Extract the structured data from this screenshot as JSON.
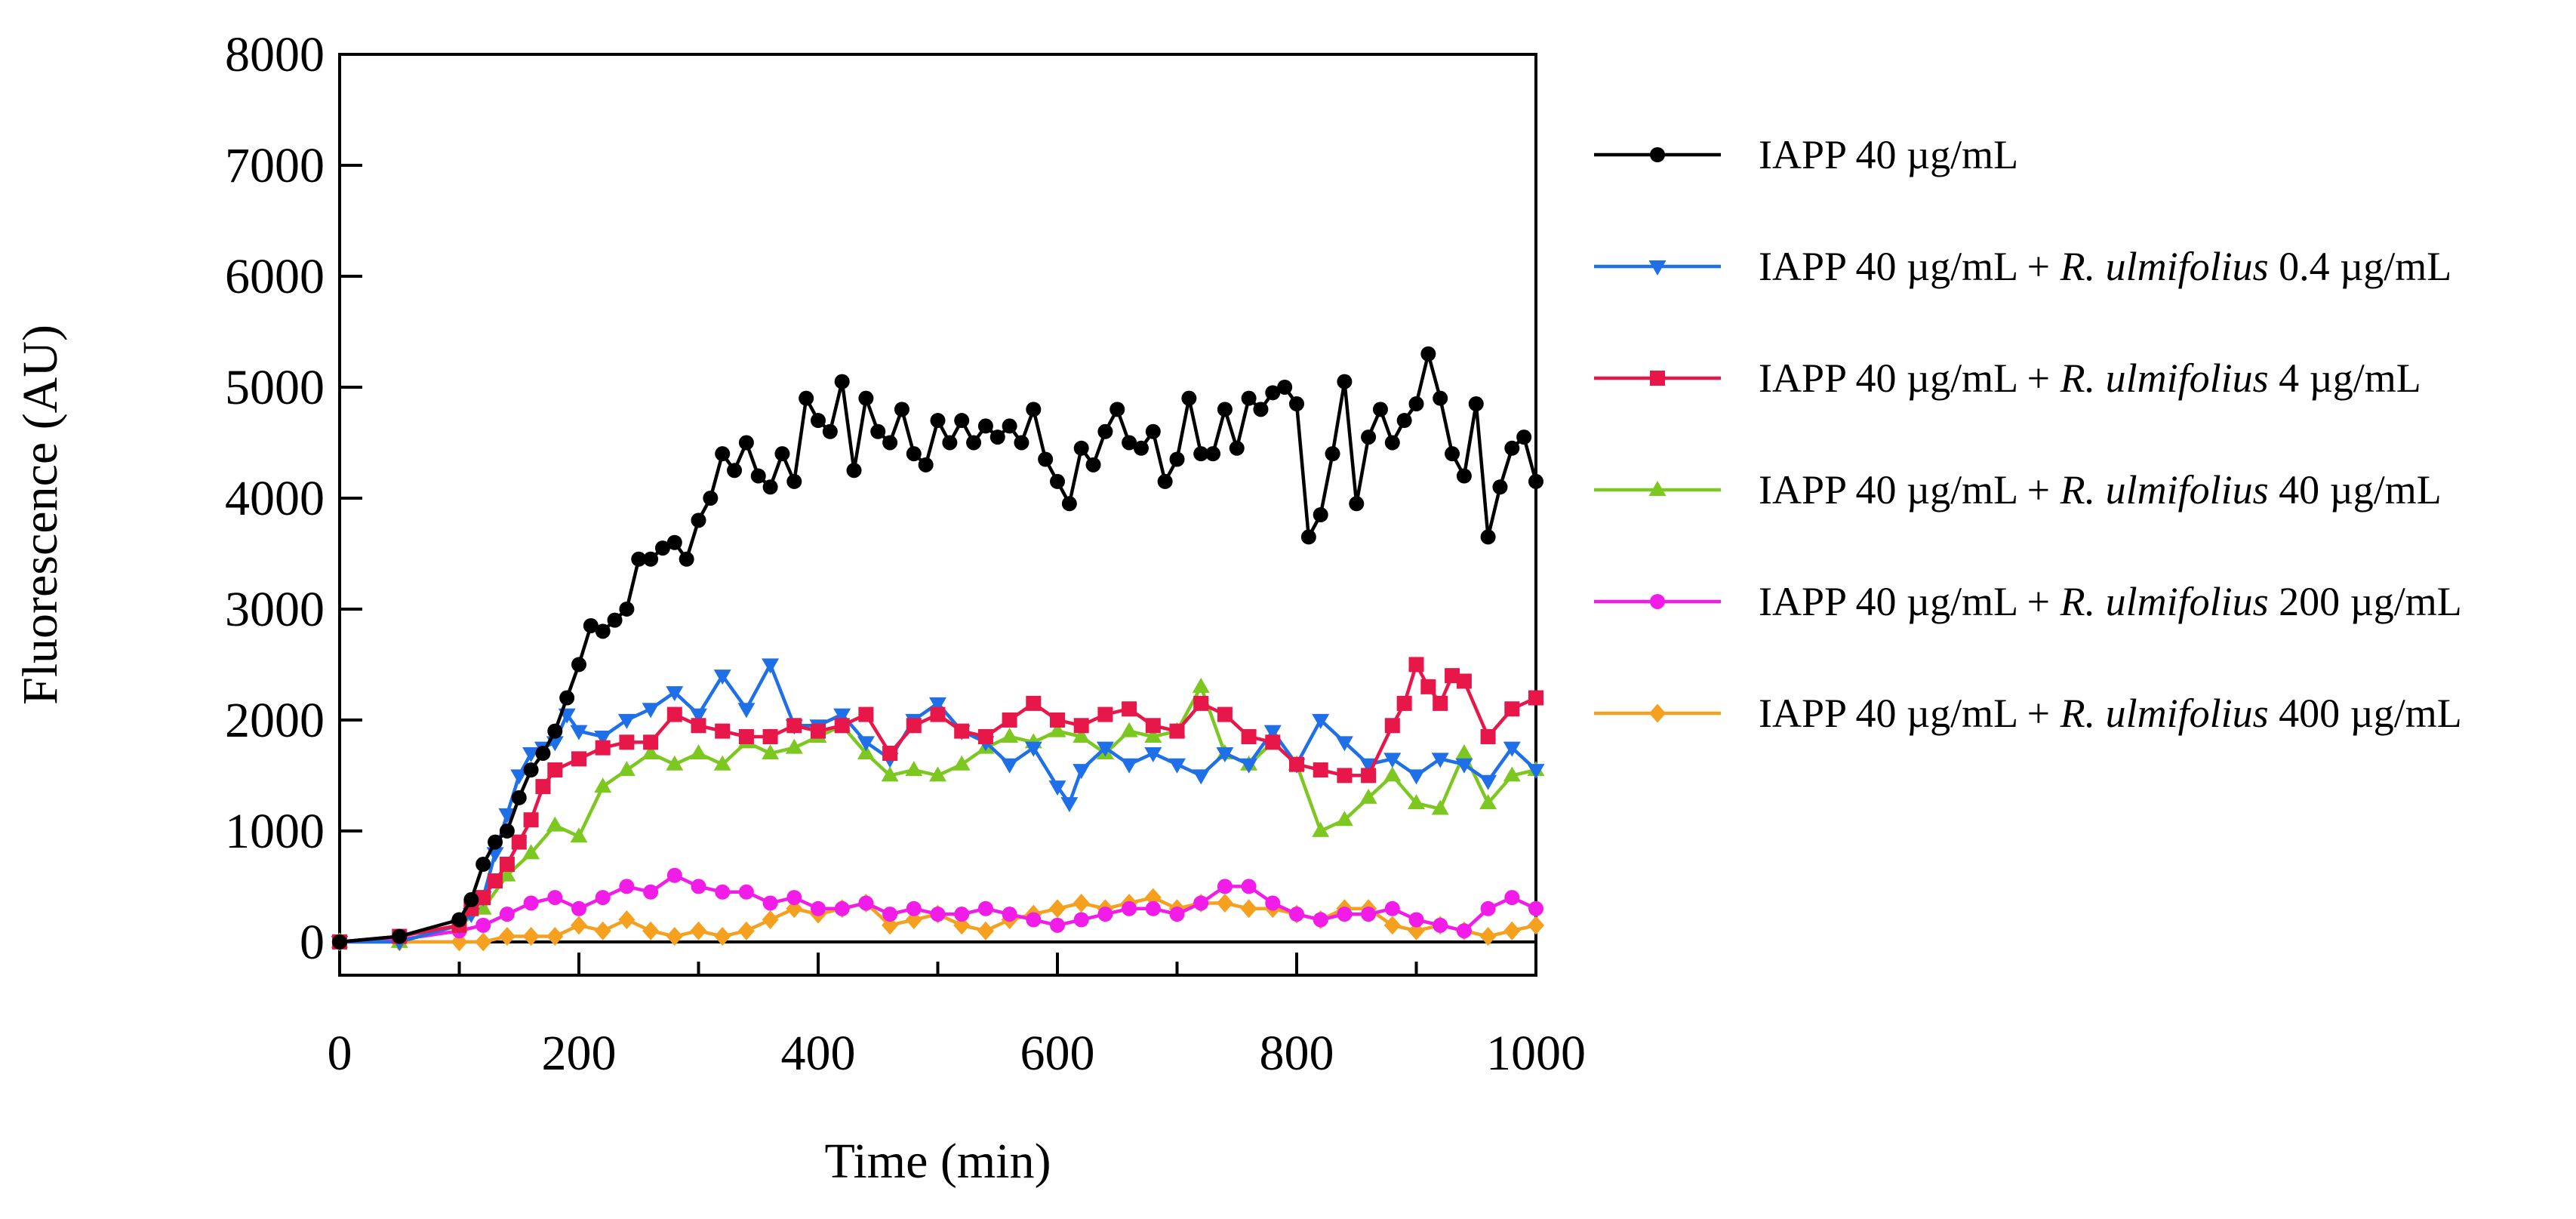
{
  "chart_data": {
    "type": "line",
    "title": "",
    "xlabel": "Time (min)",
    "ylabel": "Fluorescence (AU)",
    "xlim": [
      0,
      1000
    ],
    "ylim": [
      -300,
      8000
    ],
    "xticks": [
      0,
      200,
      400,
      600,
      800,
      1000
    ],
    "yticks": [
      0,
      1000,
      2000,
      3000,
      4000,
      5000,
      6000,
      7000,
      8000
    ],
    "x_tick_labels": [
      "0",
      "200",
      "400",
      "600",
      "800",
      "1000"
    ],
    "y_tick_labels": [
      "0",
      "1000",
      "2000",
      "3000",
      "4000",
      "5000",
      "6000",
      "7000",
      "8000"
    ],
    "zero_line": true,
    "grid": false,
    "legend_position": "right",
    "series": [
      {
        "name": "IAPP 40 µg/mL",
        "legend_parts": [
          {
            "text": "IAPP 40 µg/mL",
            "italic": false
          }
        ],
        "color": "#000000",
        "marker": "circle",
        "x": [
          0,
          50,
          100,
          110,
          120,
          130,
          140,
          150,
          160,
          170,
          180,
          190,
          200,
          210,
          220,
          230,
          240,
          250,
          260,
          270,
          280,
          290,
          300,
          310,
          320,
          330,
          340,
          350,
          360,
          370,
          380,
          390,
          400,
          410,
          420,
          430,
          440,
          450,
          460,
          470,
          480,
          490,
          500,
          510,
          520,
          530,
          540,
          550,
          560,
          570,
          580,
          590,
          600,
          610,
          620,
          630,
          640,
          650,
          660,
          670,
          680,
          690,
          700,
          710,
          720,
          730,
          740,
          750,
          760,
          770,
          780,
          790,
          800,
          810,
          820,
          830,
          840,
          850,
          860,
          870,
          880,
          890,
          900,
          910,
          920,
          930,
          940,
          950,
          960,
          970,
          980,
          990,
          1000
        ],
        "y": [
          0,
          50,
          200,
          380,
          700,
          900,
          1000,
          1300,
          1550,
          1700,
          1900,
          2200,
          2500,
          2850,
          2800,
          2900,
          3000,
          3450,
          3450,
          3550,
          3600,
          3450,
          3800,
          4000,
          4400,
          4250,
          4500,
          4200,
          4100,
          4400,
          4150,
          4900,
          4700,
          4600,
          5050,
          4250,
          4900,
          4600,
          4500,
          4800,
          4400,
          4300,
          4700,
          4500,
          4700,
          4500,
          4650,
          4550,
          4650,
          4500,
          4800,
          4350,
          4150,
          3950,
          4450,
          4300,
          4600,
          4800,
          4500,
          4450,
          4600,
          4150,
          4350,
          4900,
          4400,
          4400,
          4800,
          4450,
          4900,
          4800,
          4950,
          5000,
          4850,
          3650,
          3850,
          4400,
          5050,
          3950,
          4550,
          4800,
          4500,
          4700,
          4850,
          5300,
          4900,
          4400,
          4200,
          4850,
          3650,
          4100,
          4450,
          4550,
          4150
        ]
      },
      {
        "name": "IAPP 40 µg/mL + R. ulmifolius 0.4 µg/mL",
        "legend_parts": [
          {
            "text": "IAPP 40 µg/mL + ",
            "italic": false
          },
          {
            "text": "R. ulmifolius",
            "italic": true
          },
          {
            "text": " 0.4 µg/mL",
            "italic": false
          }
        ],
        "color": "#1E6FE8",
        "marker": "triangle-down",
        "x": [
          0,
          50,
          100,
          110,
          120,
          130,
          140,
          150,
          160,
          170,
          180,
          190,
          200,
          220,
          240,
          260,
          280,
          300,
          320,
          340,
          360,
          380,
          400,
          420,
          440,
          460,
          480,
          500,
          520,
          540,
          560,
          580,
          600,
          610,
          620,
          640,
          660,
          680,
          700,
          720,
          740,
          760,
          780,
          800,
          820,
          840,
          860,
          880,
          900,
          920,
          940,
          960,
          980,
          1000
        ],
        "y": [
          0,
          0,
          150,
          250,
          400,
          800,
          1150,
          1500,
          1700,
          1750,
          1800,
          2050,
          1900,
          1850,
          2000,
          2100,
          2250,
          2050,
          2400,
          2100,
          2500,
          1950,
          1950,
          2050,
          1800,
          1650,
          2000,
          2150,
          1900,
          1800,
          1600,
          1750,
          1400,
          1250,
          1550,
          1750,
          1600,
          1700,
          1600,
          1500,
          1700,
          1600,
          1900,
          1600,
          2000,
          1800,
          1600,
          1650,
          1500,
          1650,
          1600,
          1450,
          1750,
          1550
        ]
      },
      {
        "name": "IAPP 40 µg/mL + R. ulmifolius 4 µg/mL",
        "legend_parts": [
          {
            "text": "IAPP 40 µg/mL + ",
            "italic": false
          },
          {
            "text": "R. ulmifolius",
            "italic": true
          },
          {
            "text": " 4 µg/mL",
            "italic": false
          }
        ],
        "color": "#E8174A",
        "marker": "square",
        "x": [
          0,
          50,
          100,
          110,
          120,
          130,
          140,
          150,
          160,
          170,
          180,
          200,
          220,
          240,
          260,
          280,
          300,
          320,
          340,
          360,
          380,
          400,
          420,
          440,
          460,
          480,
          500,
          520,
          540,
          560,
          580,
          600,
          620,
          640,
          660,
          680,
          700,
          720,
          740,
          760,
          780,
          800,
          820,
          840,
          860,
          880,
          890,
          900,
          910,
          920,
          930,
          940,
          960,
          980,
          1000
        ],
        "y": [
          0,
          50,
          150,
          300,
          400,
          550,
          700,
          900,
          1100,
          1400,
          1550,
          1650,
          1750,
          1800,
          1800,
          2050,
          1950,
          1900,
          1850,
          1850,
          1950,
          1900,
          1950,
          2050,
          1700,
          1950,
          2050,
          1900,
          1850,
          2000,
          2150,
          2000,
          1950,
          2050,
          2100,
          1950,
          1900,
          2150,
          2050,
          1850,
          1800,
          1600,
          1550,
          1500,
          1500,
          1950,
          2150,
          2500,
          2300,
          2150,
          2400,
          2350,
          1850,
          2100,
          2200
        ]
      },
      {
        "name": "IAPP 40 µg/mL + R. ulmifolius 40 µg/mL",
        "legend_parts": [
          {
            "text": "IAPP 40 µg/mL + ",
            "italic": false
          },
          {
            "text": "R. ulmifolius",
            "italic": true
          },
          {
            "text": " 40 µg/mL",
            "italic": false
          }
        ],
        "color": "#7DC820",
        "marker": "triangle-up",
        "x": [
          0,
          50,
          100,
          120,
          140,
          160,
          180,
          200,
          220,
          240,
          260,
          280,
          300,
          320,
          340,
          360,
          380,
          400,
          420,
          440,
          460,
          480,
          500,
          520,
          540,
          560,
          580,
          600,
          620,
          640,
          660,
          680,
          700,
          720,
          740,
          760,
          780,
          800,
          820,
          840,
          860,
          880,
          900,
          920,
          940,
          960,
          980,
          1000
        ],
        "y": [
          0,
          0,
          150,
          300,
          600,
          800,
          1050,
          950,
          1400,
          1550,
          1700,
          1600,
          1700,
          1600,
          1800,
          1700,
          1750,
          1850,
          1950,
          1700,
          1500,
          1550,
          1500,
          1600,
          1750,
          1850,
          1800,
          1900,
          1850,
          1700,
          1900,
          1850,
          1900,
          2300,
          1700,
          1600,
          1800,
          1600,
          1000,
          1100,
          1300,
          1500,
          1250,
          1200,
          1700,
          1250,
          1500,
          1550
        ]
      },
      {
        "name": "IAPP 40 µg/mL + R. ulmifolius 200 µg/mL",
        "legend_parts": [
          {
            "text": "IAPP 40 µg/mL + ",
            "italic": false
          },
          {
            "text": "R. ulmifolius",
            "italic": true
          },
          {
            "text": " 200 µg/mL",
            "italic": false
          }
        ],
        "color": "#F21CE8",
        "marker": "circle",
        "x": [
          0,
          50,
          100,
          120,
          140,
          160,
          180,
          200,
          220,
          240,
          260,
          280,
          300,
          320,
          340,
          360,
          380,
          400,
          420,
          440,
          460,
          480,
          500,
          520,
          540,
          560,
          580,
          600,
          620,
          640,
          660,
          680,
          700,
          720,
          740,
          760,
          780,
          800,
          820,
          840,
          860,
          880,
          900,
          920,
          940,
          960,
          980,
          1000
        ],
        "y": [
          0,
          20,
          100,
          150,
          250,
          350,
          400,
          300,
          400,
          500,
          450,
          600,
          500,
          450,
          450,
          350,
          400,
          300,
          300,
          350,
          250,
          300,
          250,
          250,
          300,
          250,
          200,
          150,
          200,
          250,
          300,
          300,
          250,
          350,
          500,
          500,
          350,
          250,
          200,
          250,
          250,
          300,
          200,
          150,
          100,
          300,
          400,
          300
        ]
      },
      {
        "name": "IAPP 40 µg/mL + R. ulmifolius 400 µg/mL",
        "legend_parts": [
          {
            "text": "IAPP 40 µg/mL + ",
            "italic": false
          },
          {
            "text": "R. ulmifolius",
            "italic": true
          },
          {
            "text": " 400 µg/mL",
            "italic": false
          }
        ],
        "color": "#F5A01E",
        "marker": "diamond",
        "x": [
          0,
          50,
          100,
          120,
          140,
          160,
          180,
          200,
          220,
          240,
          260,
          280,
          300,
          320,
          340,
          360,
          380,
          400,
          420,
          440,
          460,
          480,
          500,
          520,
          540,
          560,
          580,
          600,
          620,
          640,
          660,
          680,
          700,
          720,
          740,
          760,
          780,
          800,
          820,
          840,
          860,
          880,
          900,
          920,
          940,
          960,
          980,
          1000
        ],
        "y": [
          0,
          0,
          0,
          0,
          50,
          50,
          50,
          150,
          100,
          200,
          100,
          50,
          100,
          50,
          100,
          200,
          300,
          250,
          300,
          350,
          150,
          200,
          250,
          150,
          100,
          200,
          250,
          300,
          350,
          300,
          350,
          400,
          300,
          350,
          350,
          300,
          300,
          250,
          200,
          300,
          300,
          150,
          100,
          150,
          100,
          50,
          100,
          150
        ]
      }
    ]
  }
}
